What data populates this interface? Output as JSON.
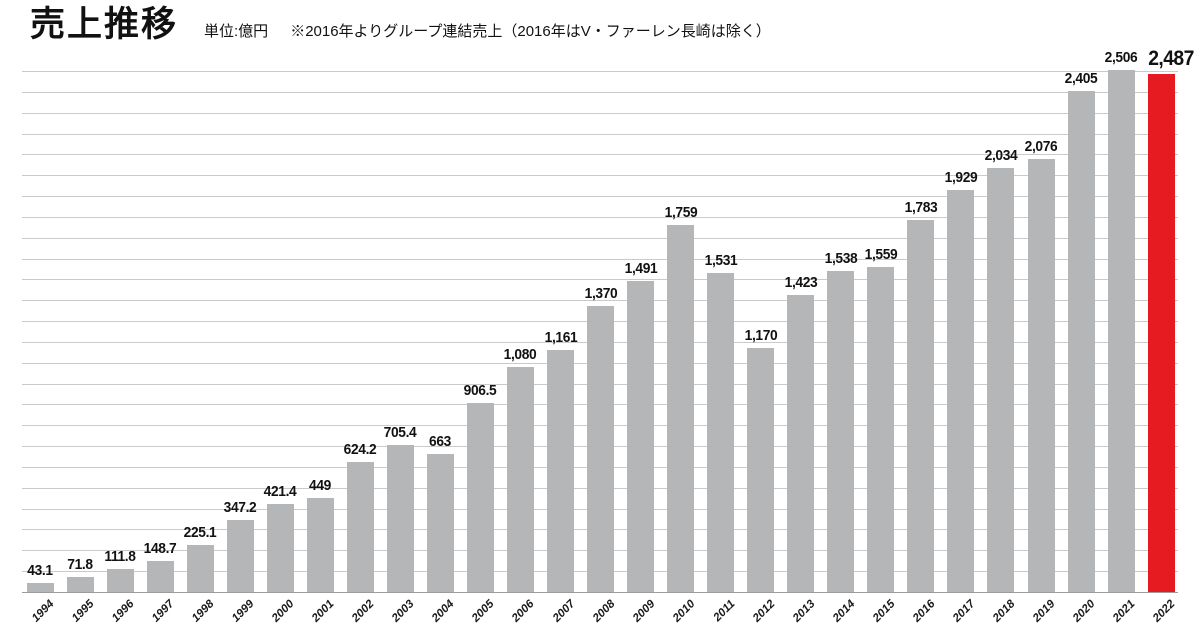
{
  "header": {
    "title": "売上推移",
    "unit_note": "単位:億円",
    "footnote": "※2016年よりグループ連結売上（2016年はV・ファーレン長崎は除く）"
  },
  "chart_data": {
    "type": "bar",
    "title": "売上推移",
    "unit": "億円",
    "categories": [
      "1994",
      "1995",
      "1996",
      "1997",
      "1998",
      "1999",
      "2000",
      "2001",
      "2002",
      "2003",
      "2004",
      "2005",
      "2006",
      "2007",
      "2008",
      "2009",
      "2010",
      "2011",
      "2012",
      "2013",
      "2014",
      "2015",
      "2016",
      "2017",
      "2018",
      "2019",
      "2020",
      "2021",
      "2022"
    ],
    "values": [
      43.1,
      71.8,
      111.8,
      148.7,
      225.1,
      347.2,
      421.4,
      449,
      624.2,
      705.4,
      663,
      906.5,
      1080,
      1161,
      1370,
      1491,
      1759,
      1531,
      1170,
      1423,
      1538,
      1559,
      1783,
      1929,
      2034,
      2076,
      2405,
      2506,
      2487
    ],
    "value_labels": [
      "43.1",
      "71.8",
      "111.8",
      "148.7",
      "225.1",
      "347.2",
      "421.4",
      "449",
      "624.2",
      "705.4",
      "663",
      "906.5",
      "1,080",
      "1,161",
      "1,370",
      "1,491",
      "1,759",
      "1,531",
      "1,170",
      "1,423",
      "1,538",
      "1,559",
      "1,783",
      "1,929",
      "2,034",
      "2,076",
      "2,405",
      "2,506",
      "2,487"
    ],
    "highlight_category": "2022",
    "ylim": [
      0,
      2500
    ],
    "grid_interval": 100,
    "grid": true,
    "y_axis_labels_visible": false,
    "legend_position": "none",
    "colors": {
      "bar": "#b4b6b8",
      "highlight": "#e61b22",
      "gridline": "#c9cacb",
      "axis": "#9b9c9e",
      "label": "#121212"
    }
  }
}
